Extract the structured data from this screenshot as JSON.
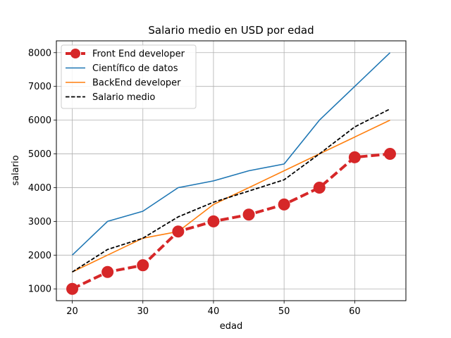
{
  "chart_data": {
    "type": "line",
    "title": "Salario medio en USD por edad",
    "xlabel": "edad",
    "ylabel": "salario",
    "x": [
      20,
      25,
      30,
      35,
      40,
      45,
      50,
      55,
      60,
      65
    ],
    "xlim": [
      17.75,
      67.25
    ],
    "ylim": [
      650,
      8350
    ],
    "xticks": [
      20,
      30,
      40,
      50,
      60
    ],
    "yticks": [
      1000,
      2000,
      3000,
      4000,
      5000,
      6000,
      7000,
      8000
    ],
    "grid": true,
    "legend_position": "top-left",
    "series": [
      {
        "name": "Front End developer",
        "values": [
          1000,
          1500,
          1700,
          2700,
          3000,
          3200,
          3500,
          4000,
          4900,
          5000
        ],
        "color": "#d62728",
        "style": "dashed",
        "marker": "circle"
      },
      {
        "name": "Científico de datos",
        "values": [
          2000,
          3000,
          3300,
          4000,
          4200,
          4500,
          4700,
          6000,
          7000,
          8000
        ],
        "color": "#1f77b4",
        "style": "solid",
        "marker": "none"
      },
      {
        "name": "BackEnd developer",
        "values": [
          1500,
          2000,
          2500,
          2700,
          3500,
          4000,
          4500,
          5000,
          5500,
          6000
        ],
        "color": "#ff7f0e",
        "style": "solid",
        "marker": "none"
      },
      {
        "name": "Salario medio",
        "values": [
          1500,
          2167,
          2500,
          3133,
          3567,
          3900,
          4233,
          5000,
          5800,
          6333
        ],
        "color": "#000000",
        "style": "dashed",
        "marker": "none"
      }
    ]
  }
}
